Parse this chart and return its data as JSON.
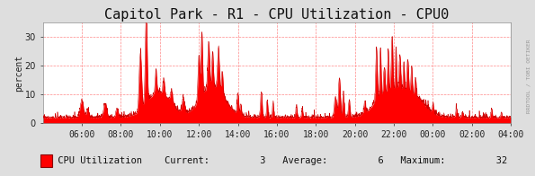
{
  "title": "Capitol Park - R1 - CPU Utilization - CPU0",
  "ylabel": "percent",
  "bg_color": "#dedede",
  "plot_bg_color": "#ffffff",
  "grid_color": "#ff8888",
  "fill_color": "#ff0000",
  "line_color": "#cc0000",
  "ylim": [
    0,
    35
  ],
  "yticks": [
    0,
    10,
    20,
    30
  ],
  "xtick_labels": [
    "06:00",
    "08:00",
    "10:00",
    "12:00",
    "14:00",
    "16:00",
    "18:00",
    "20:00",
    "22:00",
    "00:00",
    "02:00",
    "04:00"
  ],
  "legend_label": "CPU Utilization",
  "current": "3",
  "average": "6",
  "maximum": "32",
  "watermark": "RRDTOOL / TOBI OETIKER",
  "title_fontsize": 11,
  "label_fontsize": 7,
  "legend_fontsize": 7.5,
  "tick_fontsize": 7
}
